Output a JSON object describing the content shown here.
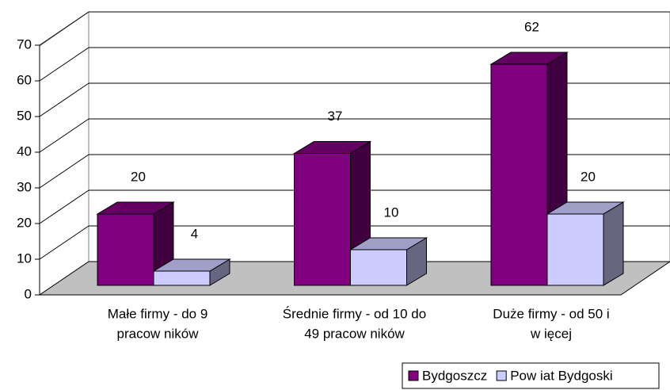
{
  "chart_data": {
    "type": "bar3d",
    "categories": [
      [
        "Małe firmy - do 9",
        "pracow ników"
      ],
      [
        "Średnie firmy - od 10 do",
        "49 pracow ników"
      ],
      [
        "Duże firmy - od 50 i",
        "w ięcej"
      ]
    ],
    "series": [
      {
        "name": "Bydgoszcz",
        "color": "#800080",
        "values": [
          20,
          37,
          62
        ]
      },
      {
        "name": "Pow iat Bydgoski",
        "color": "#ccccff",
        "values": [
          4,
          10,
          20
        ]
      }
    ],
    "ylim": [
      0,
      70
    ],
    "yticks": [
      0,
      10,
      20,
      30,
      40,
      50,
      60,
      70
    ],
    "grid": true,
    "legend": "bottom-right"
  }
}
